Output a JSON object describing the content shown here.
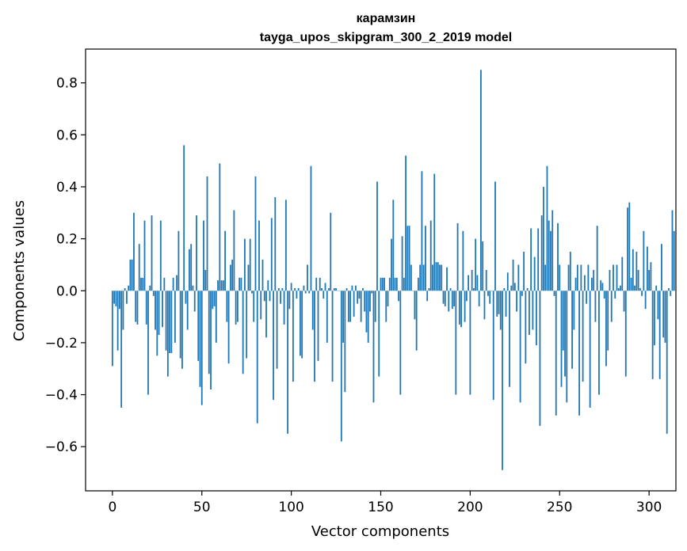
{
  "chart_data": {
    "type": "bar",
    "title": "карамзин",
    "subtitle": "tayga_upos_skipgram_300_2_2019 model",
    "xlabel": "Vector components",
    "ylabel": "Components values",
    "xlim": [
      -15,
      315
    ],
    "ylim": [
      -0.77,
      0.93
    ],
    "xticks": [
      0,
      50,
      100,
      150,
      200,
      250,
      300
    ],
    "xtick_labels": [
      "0",
      "50",
      "100",
      "150",
      "200",
      "250",
      "300"
    ],
    "yticks": [
      -0.6,
      -0.4,
      -0.2,
      0.0,
      0.2,
      0.4,
      0.6,
      0.8
    ],
    "ytick_labels": [
      "−0.6",
      "−0.4",
      "−0.2",
      "0.0",
      "0.2",
      "0.4",
      "0.6",
      "0.8"
    ],
    "bar_color": "#1f77b4",
    "grid": false,
    "values": [
      -0.29,
      -0.05,
      -0.06,
      -0.23,
      -0.07,
      -0.45,
      -0.15,
      0.01,
      -0.05,
      0.02,
      0.12,
      0.12,
      0.3,
      -0.12,
      -0.13,
      0.18,
      0.05,
      0.05,
      0.27,
      -0.13,
      -0.4,
      0.02,
      0.29,
      -0.02,
      -0.15,
      -0.25,
      -0.17,
      0.27,
      -0.14,
      0.05,
      -0.23,
      -0.33,
      -0.24,
      -0.24,
      0.05,
      -0.2,
      0.06,
      0.23,
      -0.26,
      -0.3,
      0.56,
      -0.05,
      -0.15,
      0.16,
      0.18,
      0.02,
      -0.08,
      0.29,
      -0.27,
      -0.37,
      -0.44,
      0.27,
      0.08,
      0.44,
      -0.32,
      -0.38,
      -0.07,
      -0.06,
      -0.2,
      0.04,
      0.49,
      0.04,
      0.04,
      0.23,
      -0.12,
      -0.28,
      0.1,
      0.12,
      0.31,
      -0.13,
      -0.12,
      0.05,
      0.05,
      -0.32,
      0.2,
      -0.26,
      0.1,
      0.2,
      -0.01,
      -0.12,
      0.44,
      -0.51,
      0.27,
      -0.11,
      0.12,
      -0.04,
      -0.18,
      0.04,
      -0.04,
      0.28,
      -0.42,
      0.36,
      -0.3,
      0.01,
      -0.05,
      0.01,
      -0.13,
      0.35,
      -0.55,
      -0.07,
      0.03,
      -0.35,
      0.01,
      -0.03,
      0.01,
      -0.25,
      -0.26,
      0.02,
      -0.01,
      0.1,
      -0.01,
      0.48,
      -0.15,
      -0.35,
      0.05,
      -0.27,
      0.05,
      0.01,
      -0.03,
      0.03,
      -0.2,
      0.01,
      0.3,
      -0.35,
      0.01,
      0.01,
      0.0,
      0.0,
      -0.58,
      -0.2,
      -0.39,
      0.01,
      -0.12,
      -0.12,
      0.02,
      -0.1,
      0.02,
      -0.05,
      -0.03,
      -0.12,
      0.01,
      -0.08,
      -0.16,
      -0.2,
      -0.08,
      -0.01,
      -0.43,
      -0.12,
      0.42,
      -0.33,
      0.05,
      0.05,
      0.05,
      -0.12,
      -0.06,
      0.05,
      0.2,
      0.35,
      0.05,
      0.05,
      -0.04,
      -0.4,
      0.21,
      0.05,
      0.52,
      0.25,
      0.25,
      0.1,
      0.0,
      -0.11,
      -0.23,
      0.05,
      0.1,
      0.46,
      0.1,
      0.25,
      -0.04,
      0.01,
      0.27,
      0.1,
      0.45,
      0.11,
      0.11,
      0.1,
      0.1,
      -0.05,
      -0.06,
      0.09,
      -0.08,
      0.01,
      -0.07,
      -0.06,
      -0.4,
      0.26,
      -0.13,
      -0.14,
      0.23,
      -0.12,
      -0.04,
      0.06,
      -0.4,
      0.08,
      0.01,
      0.2,
      0.06,
      -0.06,
      0.85,
      0.19,
      -0.11,
      0.08,
      -0.02,
      -0.05,
      0.0,
      -0.42,
      0.42,
      -0.1,
      -0.09,
      -0.15,
      -0.69,
      0.01,
      -0.1,
      0.07,
      -0.37,
      0.02,
      0.12,
      0.03,
      -0.08,
      0.1,
      -0.43,
      -0.02,
      0.15,
      -0.28,
      0.01,
      -0.17,
      0.24,
      -0.15,
      0.13,
      -0.21,
      0.24,
      -0.52,
      0.29,
      0.4,
      0.1,
      0.48,
      0.27,
      0.23,
      0.31,
      -0.02,
      -0.48,
      0.26,
      0.1,
      -0.37,
      -0.23,
      -0.33,
      -0.43,
      0.1,
      0.15,
      -0.3,
      -0.15,
      0.05,
      0.1,
      -0.48,
      0.1,
      -0.35,
      0.06,
      -0.05,
      0.1,
      -0.45,
      0.05,
      0.08,
      -0.12,
      0.25,
      -0.4,
      0.04,
      0.03,
      -0.03,
      -0.29,
      -0.23,
      0.08,
      -0.12,
      0.1,
      -0.03,
      0.1,
      0.01,
      0.02,
      0.13,
      -0.08,
      -0.33,
      0.32,
      0.34,
      0.05,
      0.16,
      0.02,
      0.15,
      0.08,
      0.01,
      -0.02,
      0.23,
      -0.07,
      0.17,
      0.08,
      0.11,
      -0.34,
      -0.21,
      0.02,
      -0.11,
      -0.34,
      0.18,
      -0.18,
      -0.2,
      -0.55,
      0.01,
      -0.02,
      0.31,
      0.23
    ]
  }
}
